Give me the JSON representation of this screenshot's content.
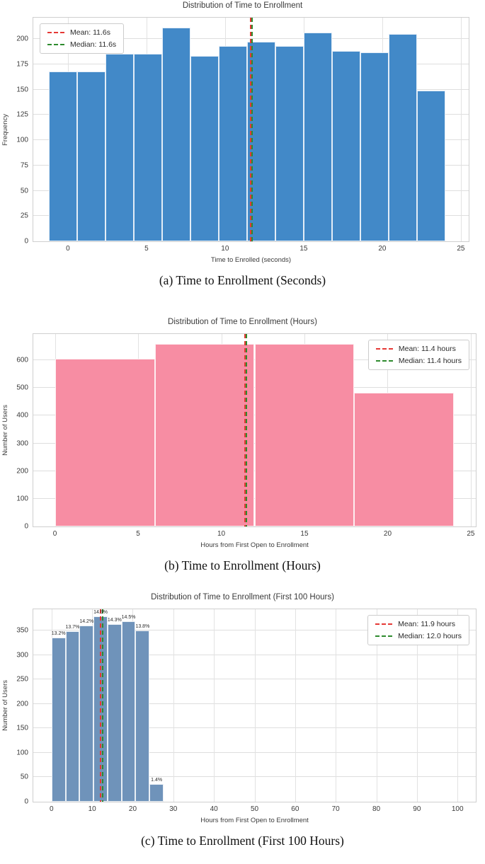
{
  "accent_colors": {
    "mean_line": "#e53935",
    "median_line": "#2e8b2e",
    "hist_blue": "#4289c8",
    "hist_pink": "#f78da3",
    "hist_steel": "#6f93ba"
  },
  "chart_data": [
    {
      "type": "bar",
      "title": "Distribution of Time to Enrollment",
      "caption": "(a) Time to Enrollment (Seconds)",
      "xlabel": "Time to Enrolled (seconds)",
      "ylabel": "Frequency",
      "xlim": [
        -2.2,
        25.5
      ],
      "ylim": [
        0,
        221
      ],
      "xticks": [
        0,
        5,
        10,
        15,
        20,
        25
      ],
      "yticks": [
        0,
        25,
        50,
        75,
        100,
        125,
        150,
        175,
        200
      ],
      "bin_start": -1.2,
      "bin_width": 1.8,
      "values": [
        168,
        168,
        185,
        185,
        211,
        183,
        193,
        197,
        193,
        206,
        188,
        187,
        205,
        149
      ],
      "bar_color": "#4289c8",
      "grid": true,
      "mean": {
        "x": 11.6,
        "label": "Mean: 11.6s",
        "color": "#e53935"
      },
      "median": {
        "x": 11.6,
        "label": "Median: 11.6s",
        "color": "#2e8b2e"
      },
      "legend_position": "left"
    },
    {
      "type": "bar",
      "title": "Distribution of Time to Enrollment (Hours)",
      "caption": "(b) Time to Enrollment (Hours)",
      "xlabel": "Hours from First Open to Enrollment",
      "ylabel": "Number of Users",
      "xlim": [
        -1.3,
        25.3
      ],
      "ylim": [
        0,
        695
      ],
      "xticks": [
        0,
        5,
        10,
        15,
        20,
        25
      ],
      "yticks": [
        0,
        100,
        200,
        300,
        400,
        500,
        600
      ],
      "bin_start": 0,
      "bin_width": 6,
      "values": [
        605,
        660,
        660,
        482
      ],
      "bar_color": "#f78da3",
      "grid": true,
      "mean": {
        "x": 11.4,
        "label": "Mean: 11.4 hours",
        "color": "#e53935"
      },
      "median": {
        "x": 11.4,
        "label": "Median: 11.4 hours",
        "color": "#2e8b2e"
      },
      "legend_position": "right"
    },
    {
      "type": "bar",
      "title": "Distribution of Time to Enrollment (First 100 Hours)",
      "caption": "(c) Time to Enrollment (First 100 Hours)",
      "xlabel": "Hours from First Open to Enrollment",
      "ylabel": "Number of Users",
      "xlim": [
        -4.5,
        104.5
      ],
      "ylim": [
        0,
        394
      ],
      "xticks": [
        0,
        10,
        20,
        30,
        40,
        50,
        60,
        70,
        80,
        90,
        100
      ],
      "yticks": [
        0,
        50,
        100,
        150,
        200,
        250,
        300,
        350
      ],
      "bin_start": 0,
      "bin_width": 3.45,
      "values": [
        336,
        349,
        361,
        379,
        364,
        369,
        351,
        36
      ],
      "bar_labels": [
        "13.2%",
        "13.7%",
        "14.2%",
        "14.9%",
        "14.3%",
        "14.5%",
        "13.8%",
        "1.4%"
      ],
      "bar_color": "#6f93ba",
      "grid": true,
      "mean": {
        "x": 11.9,
        "label": "Mean: 11.9 hours",
        "color": "#e53935"
      },
      "median": {
        "x": 12.0,
        "label": "Median: 12.0 hours",
        "color": "#2e8b2e"
      },
      "legend_position": "right"
    }
  ]
}
